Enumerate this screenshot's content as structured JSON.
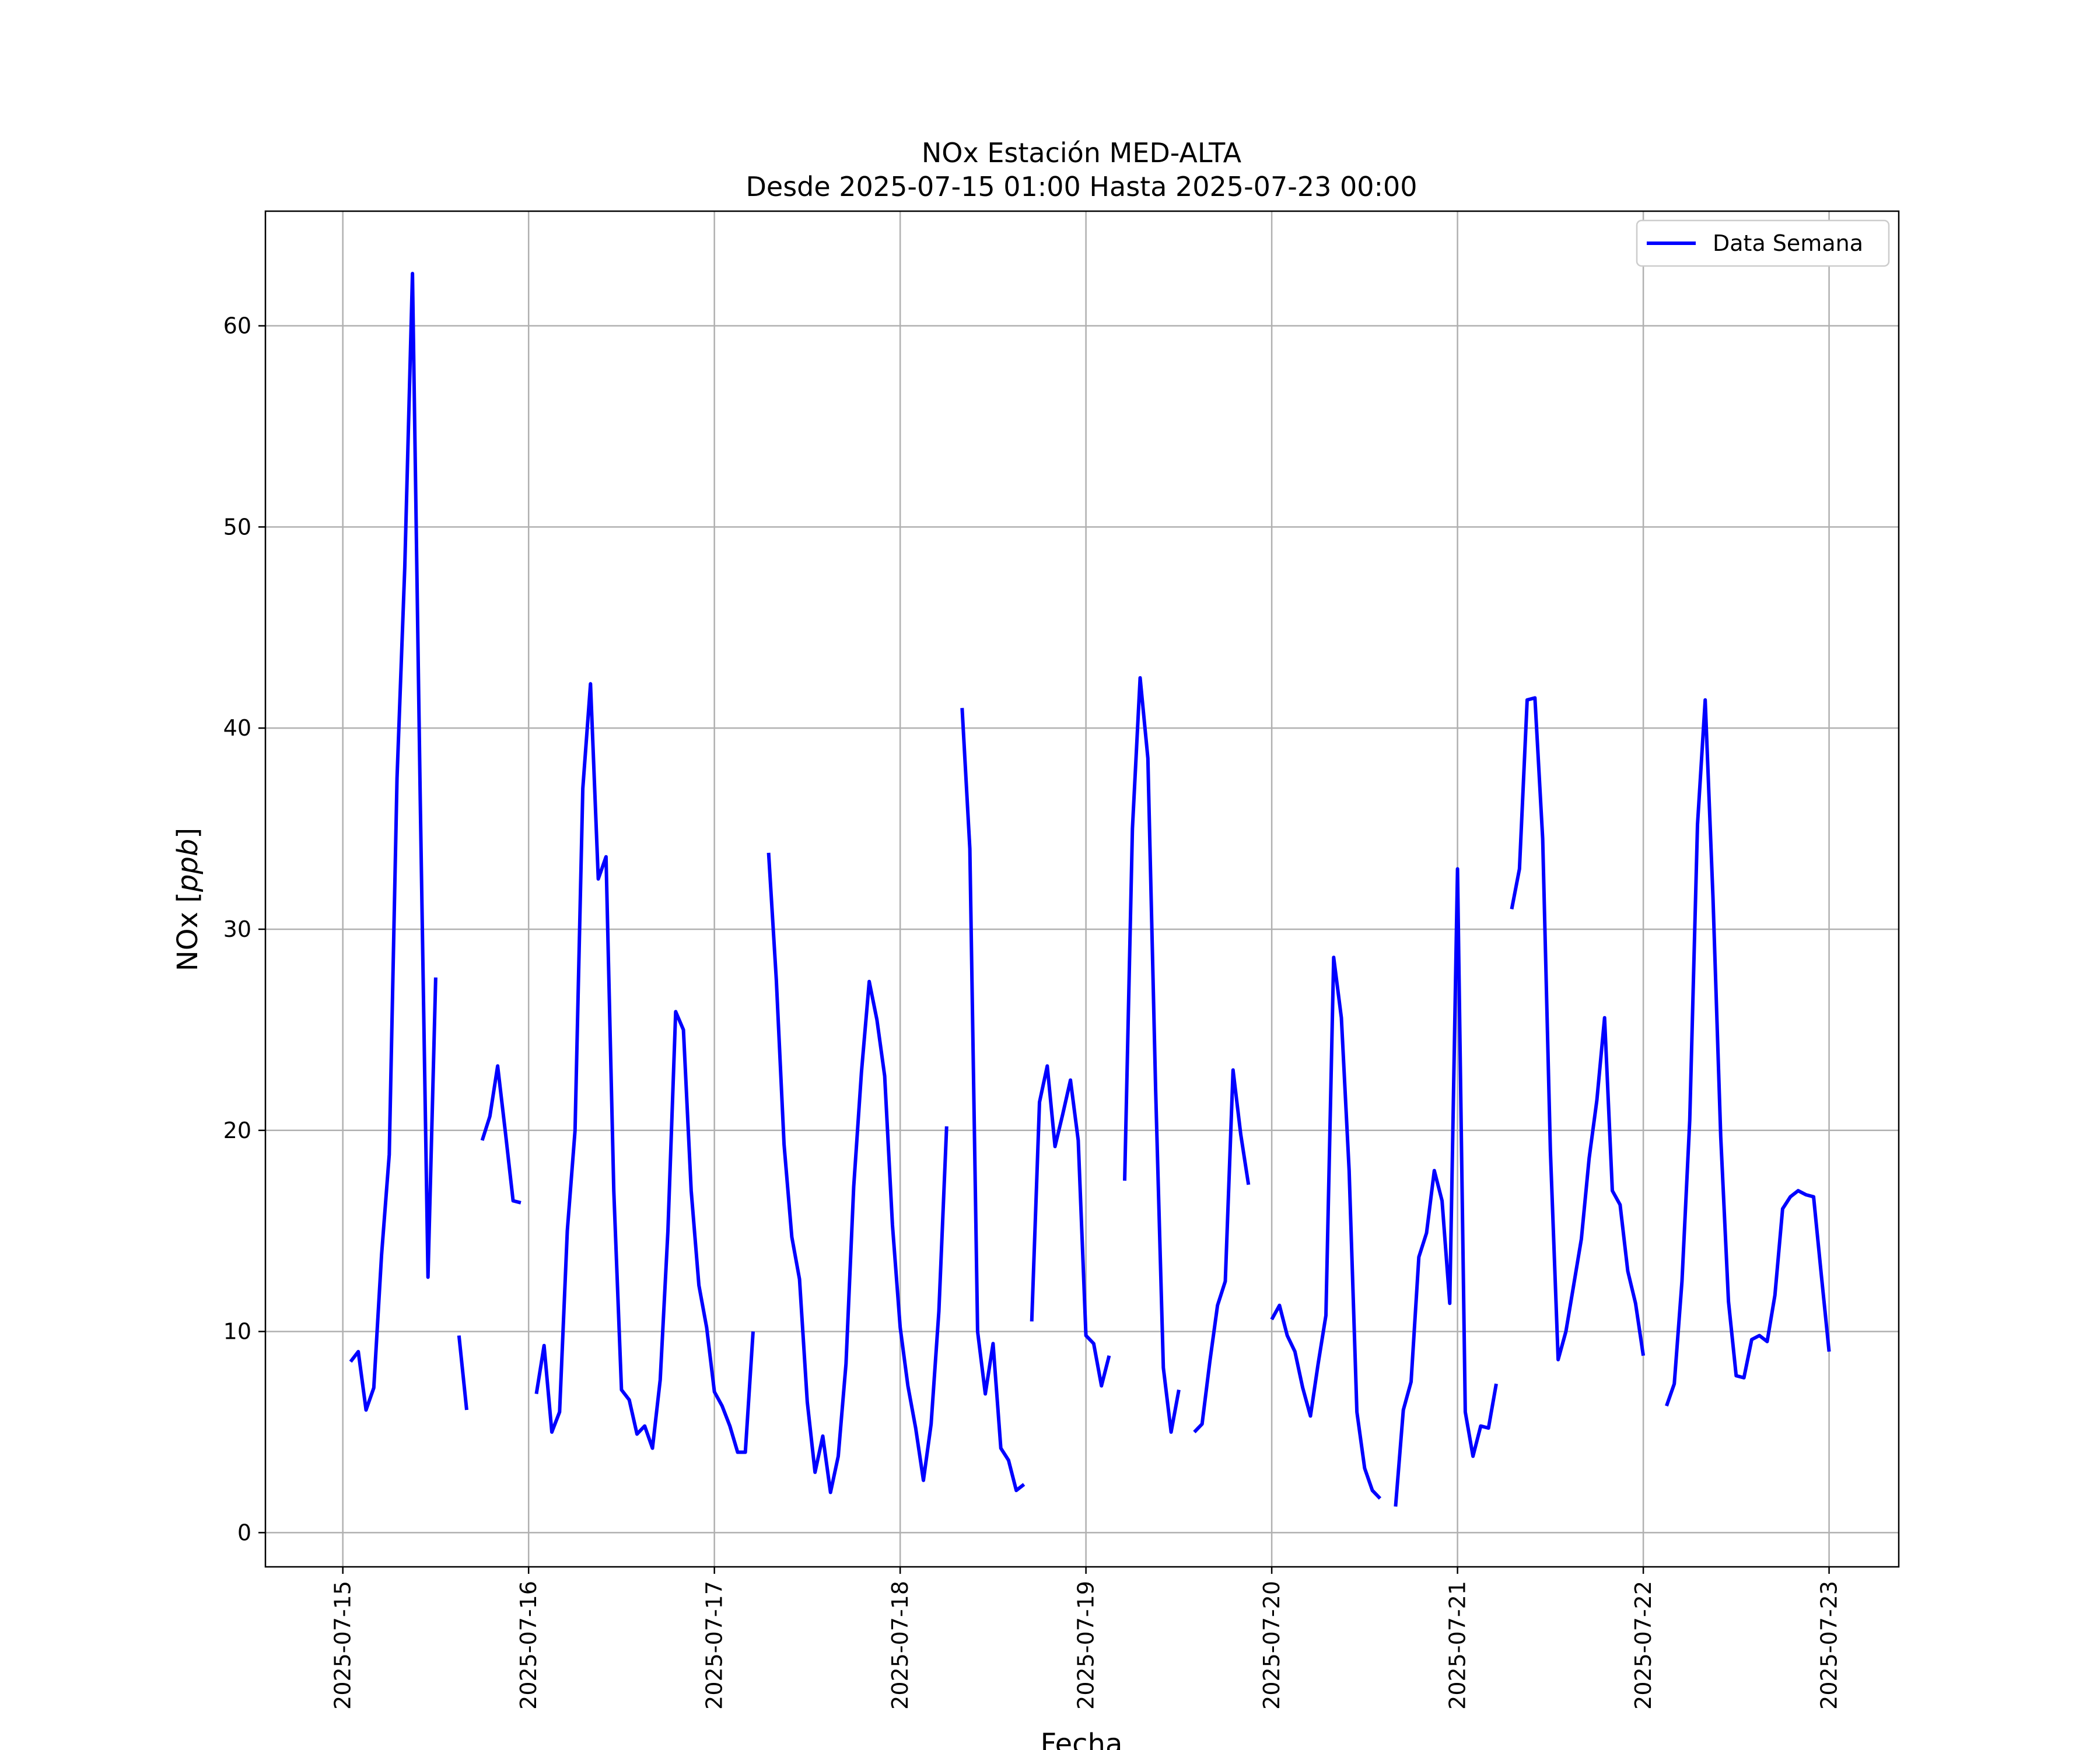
{
  "chart_data": {
    "type": "line",
    "title": "NOx Estación MED-ALTA",
    "subtitle": "Desde 2025-07-15 01:00 Hasta 2025-07-23 00:00",
    "xlabel": "Fecha",
    "ylabel": "NOx [ppb]",
    "ylabel_plain": "NOx [",
    "ylabel_italic": "ppb",
    "ylabel_close": "]",
    "xlim": [
      "2025-07-14 14:00",
      "2025-07-23 09:00"
    ],
    "ylim": [
      -1.7,
      65.7
    ],
    "grid": true,
    "legend_position": "top-right",
    "x_ticks": [
      "2025-07-15",
      "2025-07-16",
      "2025-07-17",
      "2025-07-18",
      "2025-07-19",
      "2025-07-20",
      "2025-07-21",
      "2025-07-22",
      "2025-07-23"
    ],
    "y_ticks": [
      0,
      10,
      20,
      30,
      40,
      50,
      60
    ],
    "series": [
      {
        "name": "Data Semana",
        "color": "#0000ff",
        "segments": [
          [
            [
              "2025-07-15 01:00",
              8.5
            ],
            [
              "2025-07-15 02:00",
              9.0
            ],
            [
              "2025-07-15 03:00",
              6.1
            ],
            [
              "2025-07-15 04:00",
              7.2
            ],
            [
              "2025-07-15 05:00",
              13.8
            ],
            [
              "2025-07-15 06:00",
              18.8
            ],
            [
              "2025-07-15 07:00",
              37.5
            ],
            [
              "2025-07-15 08:00",
              48.0
            ],
            [
              "2025-07-15 09:00",
              62.6
            ],
            [
              "2025-07-15 10:00",
              36.5
            ],
            [
              "2025-07-15 11:00",
              12.7
            ],
            [
              "2025-07-15 12:00",
              27.6
            ]
          ],
          [
            [
              "2025-07-15 15:00",
              9.8
            ],
            [
              "2025-07-15 16:00",
              6.1
            ]
          ],
          [
            [
              "2025-07-15 18:00",
              19.5
            ],
            [
              "2025-07-15 19:00",
              20.7
            ],
            [
              "2025-07-15 20:00",
              23.2
            ],
            [
              "2025-07-15 21:00",
              19.9
            ],
            [
              "2025-07-15 22:00",
              16.5
            ],
            [
              "2025-07-15 23:00",
              16.4
            ]
          ],
          [
            [
              "2025-07-16 01:00",
              6.9
            ],
            [
              "2025-07-16 02:00",
              9.3
            ],
            [
              "2025-07-16 03:00",
              5.0
            ],
            [
              "2025-07-16 04:00",
              6.0
            ],
            [
              "2025-07-16 05:00",
              15.0
            ],
            [
              "2025-07-16 06:00",
              20.0
            ],
            [
              "2025-07-16 07:00",
              37.0
            ],
            [
              "2025-07-16 08:00",
              42.2
            ],
            [
              "2025-07-16 09:00",
              32.5
            ],
            [
              "2025-07-16 10:00",
              33.6
            ],
            [
              "2025-07-16 11:00",
              17.0
            ],
            [
              "2025-07-16 12:00",
              7.1
            ],
            [
              "2025-07-16 13:00",
              6.6
            ],
            [
              "2025-07-16 14:00",
              4.9
            ],
            [
              "2025-07-16 15:00",
              5.3
            ],
            [
              "2025-07-16 16:00",
              4.2
            ],
            [
              "2025-07-16 17:00",
              7.6
            ],
            [
              "2025-07-16 18:00",
              15.0
            ],
            [
              "2025-07-16 19:00",
              25.9
            ],
            [
              "2025-07-16 20:00",
              25.0
            ],
            [
              "2025-07-16 21:00",
              17.0
            ],
            [
              "2025-07-16 22:00",
              12.3
            ],
            [
              "2025-07-16 23:00",
              10.2
            ],
            [
              "2025-07-17 00:00",
              7.0
            ],
            [
              "2025-07-17 01:00",
              6.3
            ],
            [
              "2025-07-17 02:00",
              5.3
            ],
            [
              "2025-07-17 03:00",
              4.0
            ],
            [
              "2025-07-17 04:00",
              4.0
            ],
            [
              "2025-07-17 05:00",
              10.0
            ]
          ],
          [
            [
              "2025-07-17 07:00",
              33.8
            ],
            [
              "2025-07-17 08:00",
              27.5
            ],
            [
              "2025-07-17 09:00",
              19.3
            ],
            [
              "2025-07-17 10:00",
              14.7
            ],
            [
              "2025-07-17 11:00",
              12.6
            ],
            [
              "2025-07-17 12:00",
              6.5
            ],
            [
              "2025-07-17 13:00",
              3.0
            ],
            [
              "2025-07-17 14:00",
              4.8
            ],
            [
              "2025-07-17 15:00",
              2.0
            ],
            [
              "2025-07-17 16:00",
              3.8
            ],
            [
              "2025-07-17 17:00",
              8.4
            ],
            [
              "2025-07-17 18:00",
              17.2
            ],
            [
              "2025-07-17 19:00",
              22.9
            ],
            [
              "2025-07-17 20:00",
              27.4
            ],
            [
              "2025-07-17 21:00",
              25.5
            ],
            [
              "2025-07-17 22:00",
              22.7
            ],
            [
              "2025-07-17 23:00",
              15.3
            ],
            [
              "2025-07-18 00:00",
              10.2
            ],
            [
              "2025-07-18 01:00",
              7.3
            ],
            [
              "2025-07-18 02:00",
              5.2
            ],
            [
              "2025-07-18 03:00",
              2.6
            ],
            [
              "2025-07-18 04:00",
              5.4
            ],
            [
              "2025-07-18 05:00",
              11.0
            ],
            [
              "2025-07-18 06:00",
              20.2
            ]
          ],
          [
            [
              "2025-07-18 08:00",
              41.0
            ],
            [
              "2025-07-18 09:00",
              34.0
            ],
            [
              "2025-07-18 10:00",
              10.0
            ],
            [
              "2025-07-18 11:00",
              6.9
            ],
            [
              "2025-07-18 12:00",
              9.4
            ],
            [
              "2025-07-18 13:00",
              4.2
            ],
            [
              "2025-07-18 14:00",
              3.6
            ],
            [
              "2025-07-18 15:00",
              2.1
            ],
            [
              "2025-07-18 16:00",
              2.4
            ]
          ],
          [
            [
              "2025-07-18 17:00",
              10.5
            ],
            [
              "2025-07-18 18:00",
              21.4
            ],
            [
              "2025-07-18 19:00",
              23.2
            ],
            [
              "2025-07-18 20:00",
              19.2
            ],
            [
              "2025-07-18 21:00",
              20.8
            ],
            [
              "2025-07-18 22:00",
              22.5
            ],
            [
              "2025-07-18 23:00",
              19.5
            ],
            [
              "2025-07-19 00:00",
              9.8
            ],
            [
              "2025-07-19 01:00",
              9.4
            ],
            [
              "2025-07-19 02:00",
              7.3
            ],
            [
              "2025-07-19 03:00",
              8.8
            ]
          ],
          [
            [
              "2025-07-19 05:00",
              17.5
            ],
            [
              "2025-07-19 06:00",
              35.0
            ],
            [
              "2025-07-19 07:00",
              42.5
            ],
            [
              "2025-07-19 08:00",
              38.5
            ],
            [
              "2025-07-19 09:00",
              22.0
            ],
            [
              "2025-07-19 10:00",
              8.2
            ],
            [
              "2025-07-19 11:00",
              5.0
            ],
            [
              "2025-07-19 12:00",
              7.1
            ]
          ],
          [
            [
              "2025-07-19 14:00",
              5.0
            ],
            [
              "2025-07-19 15:00",
              5.4
            ],
            [
              "2025-07-19 16:00",
              8.5
            ],
            [
              "2025-07-19 17:00",
              11.3
            ],
            [
              "2025-07-19 18:00",
              12.5
            ],
            [
              "2025-07-19 19:00",
              23.0
            ],
            [
              "2025-07-19 20:00",
              19.8
            ],
            [
              "2025-07-19 21:00",
              17.3
            ]
          ],
          [
            [
              "2025-07-20 00:00",
              10.6
            ],
            [
              "2025-07-20 01:00",
              11.3
            ],
            [
              "2025-07-20 02:00",
              9.8
            ],
            [
              "2025-07-20 03:00",
              9.0
            ],
            [
              "2025-07-20 04:00",
              7.2
            ],
            [
              "2025-07-20 05:00",
              5.8
            ],
            [
              "2025-07-20 06:00",
              8.4
            ],
            [
              "2025-07-20 07:00",
              10.8
            ],
            [
              "2025-07-20 08:00",
              28.6
            ],
            [
              "2025-07-20 09:00",
              25.6
            ],
            [
              "2025-07-20 10:00",
              18.0
            ],
            [
              "2025-07-20 11:00",
              6.0
            ],
            [
              "2025-07-20 12:00",
              3.2
            ],
            [
              "2025-07-20 13:00",
              2.1
            ],
            [
              "2025-07-20 14:00",
              1.7
            ]
          ],
          [
            [
              "2025-07-20 16:00",
              1.3
            ],
            [
              "2025-07-20 17:00",
              6.1
            ],
            [
              "2025-07-20 18:00",
              7.5
            ],
            [
              "2025-07-20 19:00",
              13.7
            ],
            [
              "2025-07-20 20:00",
              14.9
            ],
            [
              "2025-07-20 21:00",
              18.0
            ],
            [
              "2025-07-20 22:00",
              16.5
            ],
            [
              "2025-07-20 23:00",
              11.4
            ],
            [
              "2025-07-21 00:00",
              33.0
            ],
            [
              "2025-07-21 01:00",
              6.0
            ],
            [
              "2025-07-21 02:00",
              3.8
            ],
            [
              "2025-07-21 03:00",
              5.3
            ],
            [
              "2025-07-21 04:00",
              5.2
            ],
            [
              "2025-07-21 05:00",
              7.4
            ]
          ],
          [
            [
              "2025-07-21 07:00",
              31.0
            ],
            [
              "2025-07-21 08:00",
              33.0
            ],
            [
              "2025-07-21 09:00",
              41.4
            ],
            [
              "2025-07-21 10:00",
              41.5
            ],
            [
              "2025-07-21 11:00",
              34.5
            ],
            [
              "2025-07-21 12:00",
              19.0
            ],
            [
              "2025-07-21 13:00",
              8.6
            ],
            [
              "2025-07-21 14:00",
              10.0
            ],
            [
              "2025-07-21 15:00",
              12.3
            ],
            [
              "2025-07-21 16:00",
              14.6
            ],
            [
              "2025-07-21 17:00",
              18.6
            ],
            [
              "2025-07-21 18:00",
              21.5
            ],
            [
              "2025-07-21 19:00",
              25.6
            ],
            [
              "2025-07-21 20:00",
              17.0
            ],
            [
              "2025-07-21 21:00",
              16.3
            ],
            [
              "2025-07-21 22:00",
              13.0
            ],
            [
              "2025-07-21 23:00",
              11.4
            ],
            [
              "2025-07-22 00:00",
              8.8
            ]
          ],
          [
            [
              "2025-07-22 03:00",
              6.3
            ],
            [
              "2025-07-22 04:00",
              7.4
            ],
            [
              "2025-07-22 05:00",
              12.5
            ],
            [
              "2025-07-22 06:00",
              20.5
            ],
            [
              "2025-07-22 07:00",
              35.2
            ],
            [
              "2025-07-22 08:00",
              41.4
            ],
            [
              "2025-07-22 09:00",
              31.6
            ],
            [
              "2025-07-22 10:00",
              19.7
            ],
            [
              "2025-07-22 11:00",
              11.5
            ],
            [
              "2025-07-22 12:00",
              7.8
            ],
            [
              "2025-07-22 13:00",
              7.7
            ],
            [
              "2025-07-22 14:00",
              9.6
            ],
            [
              "2025-07-22 15:00",
              9.8
            ],
            [
              "2025-07-22 16:00",
              9.5
            ],
            [
              "2025-07-22 17:00",
              11.8
            ],
            [
              "2025-07-22 18:00",
              16.1
            ],
            [
              "2025-07-22 19:00",
              16.7
            ],
            [
              "2025-07-22 20:00",
              17.0
            ],
            [
              "2025-07-22 21:00",
              16.8
            ],
            [
              "2025-07-22 22:00",
              16.7
            ],
            [
              "2025-07-22 23:00",
              12.8
            ],
            [
              "2025-07-23 00:00",
              9.0
            ]
          ]
        ]
      }
    ]
  }
}
